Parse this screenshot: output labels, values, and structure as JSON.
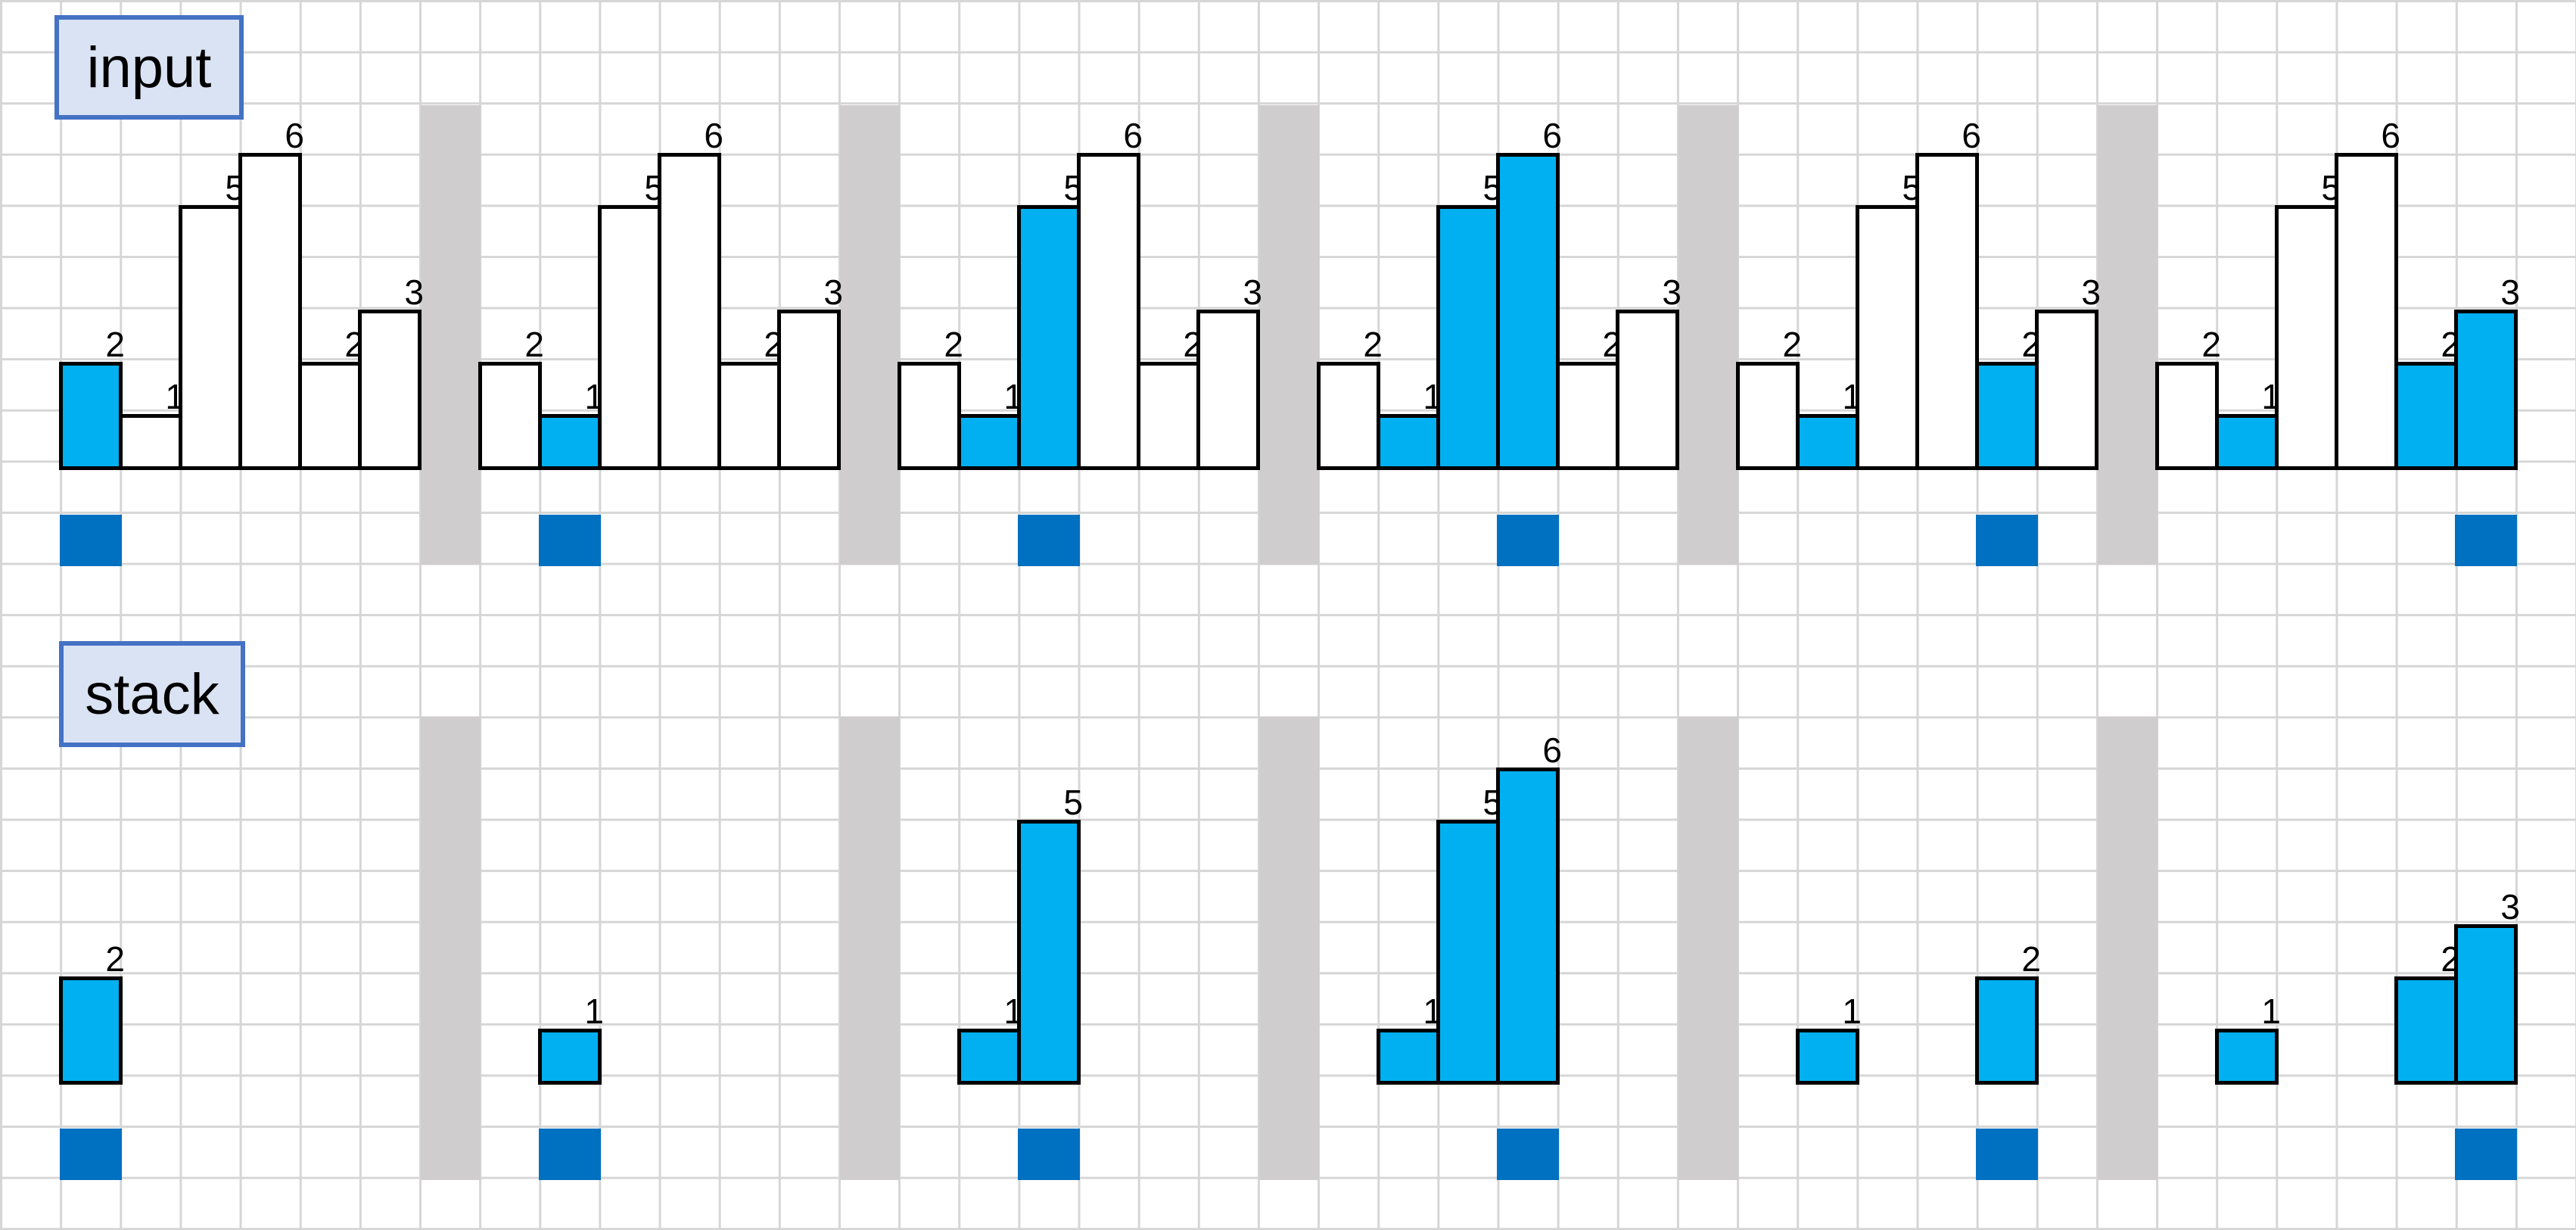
{
  "labels": {
    "input": "input",
    "stack": "stack"
  },
  "colors": {
    "highlight": "#00b0f0",
    "pointer": "#0070c0",
    "separator": "#cfcdcd",
    "label_bg": "#dae3f3",
    "label_border": "#4472c4"
  },
  "input_values": [
    2,
    1,
    5,
    6,
    2,
    3
  ],
  "steps": [
    {
      "input_highlight": [
        0
      ],
      "pointer_index": 0,
      "stack": [
        {
          "index": 0,
          "value": 2
        }
      ]
    },
    {
      "input_highlight": [
        1
      ],
      "pointer_index": 1,
      "stack": [
        {
          "index": 1,
          "value": 1
        }
      ]
    },
    {
      "input_highlight": [
        1,
        2
      ],
      "pointer_index": 2,
      "stack": [
        {
          "index": 1,
          "value": 1
        },
        {
          "index": 2,
          "value": 5
        }
      ]
    },
    {
      "input_highlight": [
        1,
        2,
        3
      ],
      "pointer_index": 3,
      "stack": [
        {
          "index": 1,
          "value": 1
        },
        {
          "index": 2,
          "value": 5
        },
        {
          "index": 3,
          "value": 6
        }
      ]
    },
    {
      "input_highlight": [
        1,
        4
      ],
      "pointer_index": 4,
      "stack": [
        {
          "index": 1,
          "value": 1
        },
        {
          "index": 4,
          "value": 2
        }
      ]
    },
    {
      "input_highlight": [
        1,
        4,
        5
      ],
      "pointer_index": 5,
      "stack": [
        {
          "index": 1,
          "value": 1
        },
        {
          "index": 4,
          "value": 2
        },
        {
          "index": 5,
          "value": 3
        }
      ]
    }
  ]
}
